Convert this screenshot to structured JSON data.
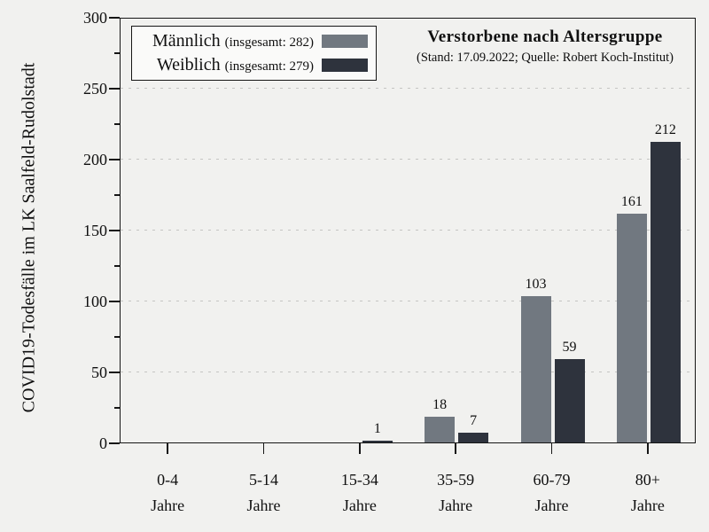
{
  "title": {
    "text": "Verstorbene nach Altersgruppe",
    "subtitle": "(Stand: 17.09.2022; Quelle: Robert Koch-Institut)"
  },
  "y_axis": {
    "label": "COVID19-Todesfälle im LK Saalfeld-Rudolstadt",
    "ticks": [
      0,
      50,
      100,
      150,
      200,
      250,
      300
    ],
    "minor_ticks": [
      25,
      75,
      125,
      175,
      225,
      275
    ]
  },
  "legend": {
    "items": [
      {
        "name": "Männlich",
        "detail": "(insgesamt: 282)",
        "color": "#717880"
      },
      {
        "name": "Weiblich",
        "detail": "(insgesamt: 279)",
        "color": "#2e333d"
      }
    ]
  },
  "colors": {
    "background": "#f1f1ef",
    "male": "#717880",
    "female": "#2e333d",
    "axis": "#161616",
    "grid": "#c5c5c3",
    "legend_bg": "#fafaf9"
  },
  "chart_data": {
    "type": "bar",
    "categories": [
      "0-4",
      "5-14",
      "15-34",
      "35-59",
      "60-79",
      "80+"
    ],
    "category_unit": "Jahre",
    "series": [
      {
        "name": "Männlich",
        "total": 282,
        "color": "#717880",
        "values": [
          0,
          0,
          0,
          18,
          103,
          161
        ]
      },
      {
        "name": "Weiblich",
        "total": 279,
        "color": "#2e333d",
        "values": [
          0,
          0,
          1,
          7,
          59,
          212
        ]
      }
    ],
    "title": "Verstorbene nach Altersgruppe",
    "subtitle": "(Stand: 17.09.2022; Quelle: Robert Koch-Institut)",
    "xlabel": "",
    "ylabel": "COVID19-Todesfälle im LK Saalfeld-Rudolstadt",
    "ylim": [
      0,
      300
    ],
    "ytick_step": 50,
    "yminor_step": 25,
    "grid": "horizontal-dashed",
    "legend_position": "upper-left-inside",
    "title_position": "upper-right-inside",
    "value_labels": "above-nonzero-bars"
  }
}
